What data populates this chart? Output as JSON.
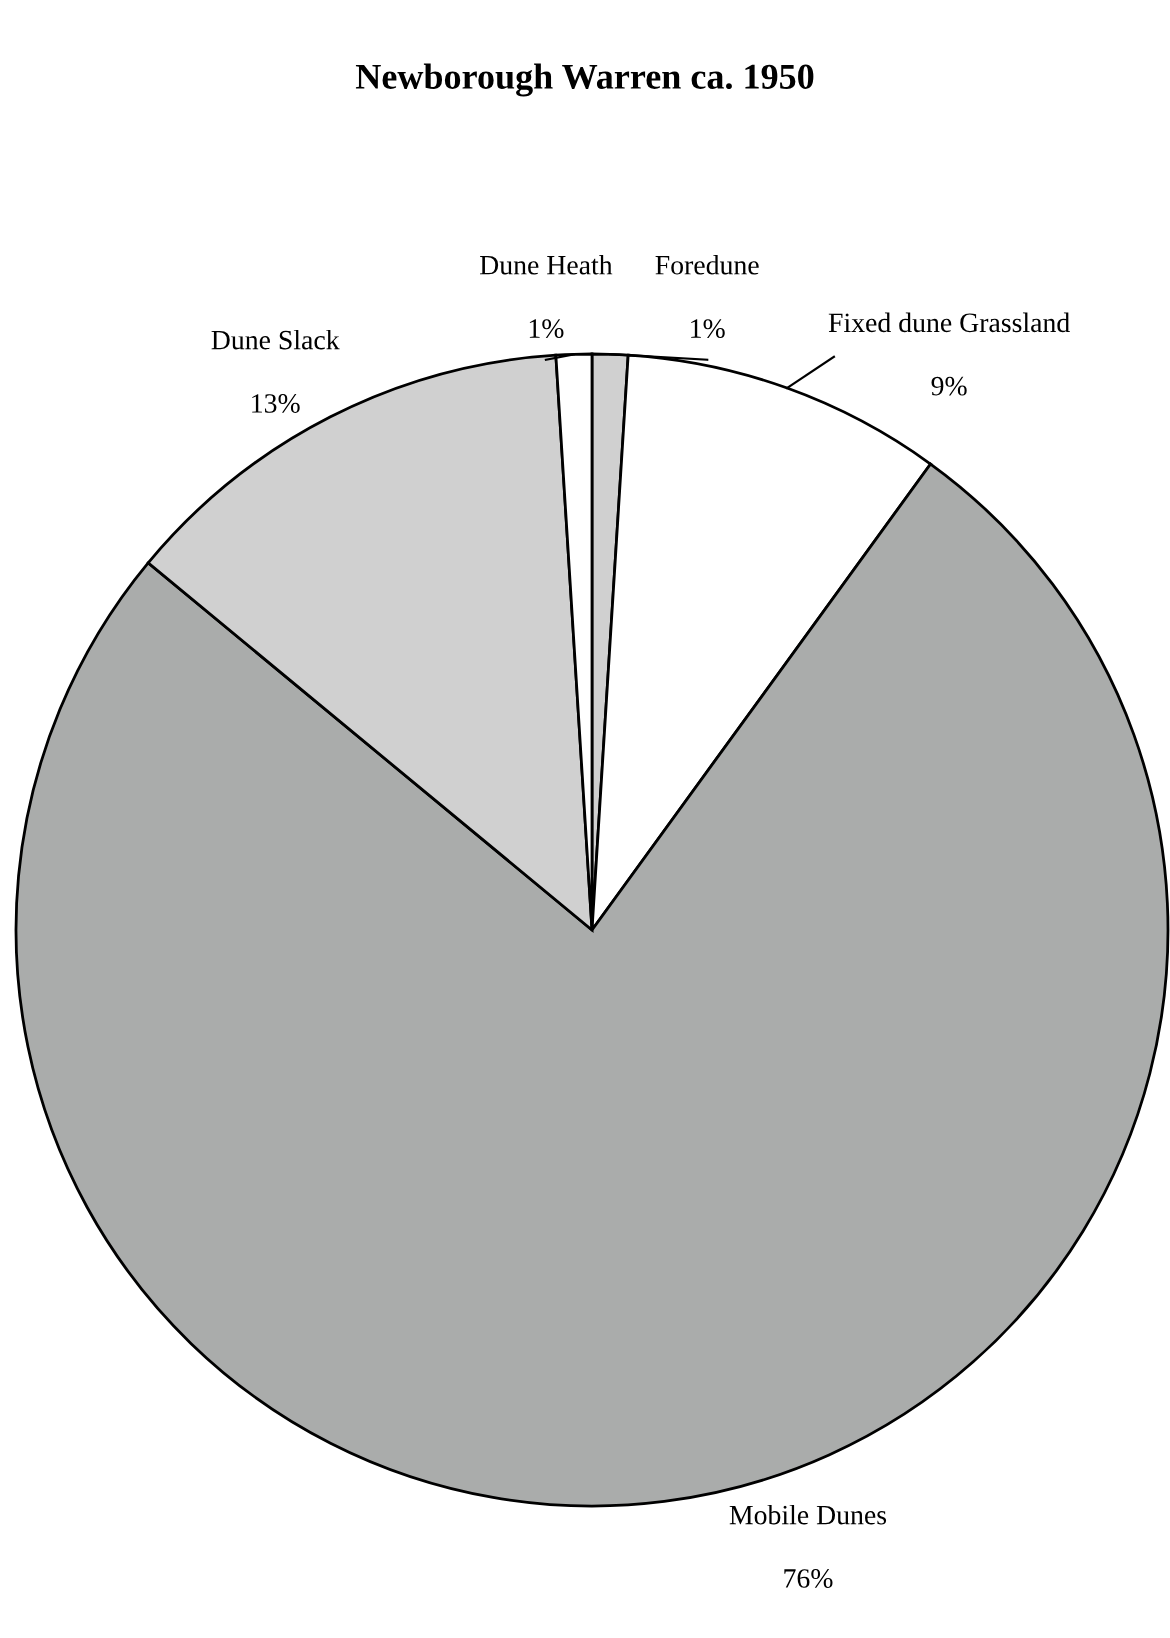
{
  "chart_data": {
    "type": "pie",
    "title": "Newborough Warren ca. 1950",
    "categories": [
      "Foredune",
      "Fixed dune Grassland",
      "Mobile Dunes",
      "Dune Slack",
      "Dune Heath"
    ],
    "values": [
      1,
      9,
      76,
      13,
      1
    ],
    "colors": [
      "#d0d0d0",
      "#ffffff",
      "#aaacab",
      "#d0d0d0",
      "#ffffff"
    ],
    "value_labels": [
      "1%",
      "9%",
      "76%",
      "13%",
      "1%"
    ]
  }
}
